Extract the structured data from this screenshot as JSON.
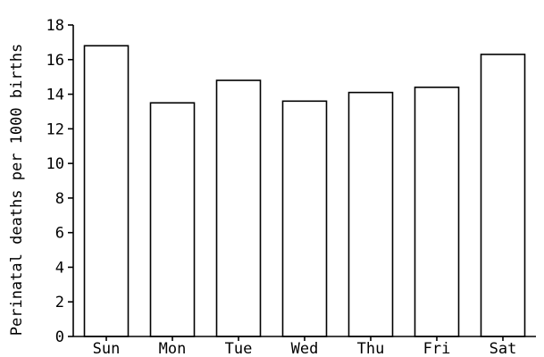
{
  "chart_data": {
    "type": "bar",
    "categories": [
      "Sun",
      "Mon",
      "Tue",
      "Wed",
      "Thu",
      "Fri",
      "Sat"
    ],
    "values": [
      16.8,
      13.5,
      14.8,
      13.6,
      14.1,
      14.4,
      16.3
    ],
    "title": "",
    "xlabel": "",
    "ylabel": "Perinatal deaths per 1000 births",
    "ylim": [
      0,
      18
    ],
    "yticks": [
      0,
      2,
      4,
      6,
      8,
      10,
      12,
      14,
      16,
      18
    ],
    "grid": false,
    "bar_fill": "#ffffff",
    "bar_stroke": "#000000"
  }
}
